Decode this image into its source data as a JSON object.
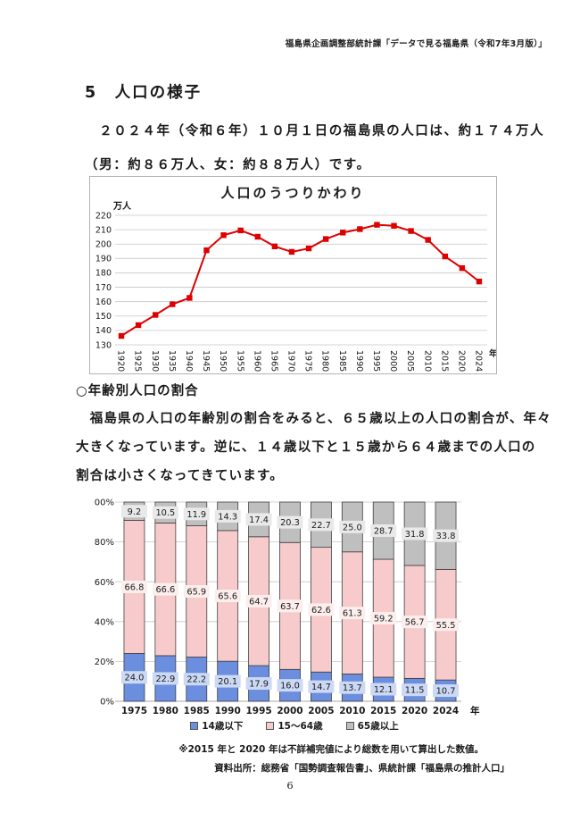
{
  "header": {
    "credit": "福島県企画調整部統計課「データで見る福島県（令和7年3月版）」"
  },
  "section": {
    "title": "5　人口の様子",
    "body_line1": "　２０２４年（令和６年）１０月１日の福島県の人口は、約１７４万人",
    "body_line2": "（男：約８６万人、女：約８８万人）です。"
  },
  "subsection": {
    "title": "○年齢別人口の割合",
    "body_line1": "　福島県の人口の年齢別の割合をみると、６５歳以上の人口の割合が、年々",
    "body_line2": "大きくなっています。逆に、１４歳以下と１５歳から６４歳までの人口の",
    "body_line3": "割合は小さくなってきています。"
  },
  "footer": {
    "note": "※2015 年と 2020 年は不詳補完値により総数を用いて算出した数値。",
    "source": "資料出所：総務省「国勢調査報告書」、県統計課「福島県の推計人口」",
    "page_number": "6"
  },
  "chart_data": [
    {
      "type": "line",
      "title": "人口のうつりかわり",
      "unit_label": "万人",
      "x_axis_suffix": "年",
      "x": [
        "1920",
        "1925",
        "1930",
        "1935",
        "1940",
        "1945",
        "1950",
        "1955",
        "1960",
        "1965",
        "1970",
        "1975",
        "1980",
        "1985",
        "1990",
        "1995",
        "2000",
        "2005",
        "2010",
        "2015",
        "2020",
        "2024"
      ],
      "values": [
        136.2,
        143.7,
        150.8,
        158.2,
        162.6,
        195.7,
        206.2,
        209.5,
        205.1,
        198.4,
        194.6,
        197.0,
        203.5,
        208.0,
        210.4,
        213.4,
        212.7,
        209.1,
        202.9,
        191.4,
        183.3,
        174.0
      ],
      "ylim": [
        130,
        220
      ],
      "ytick_step": 10,
      "grid": true,
      "legend": "none",
      "line_color": "#dd0000",
      "marker": "square"
    },
    {
      "type": "bar",
      "subtype": "stacked-percent",
      "categories": [
        "1975",
        "1980",
        "1985",
        "1990",
        "1995",
        "2000",
        "2005",
        "2010",
        "2015",
        "2020",
        "2024"
      ],
      "x_axis_suffix": "年",
      "series": [
        {
          "name": "14歳以下",
          "color": "#6b8ede",
          "label_bg": "#ccd9f5",
          "values": [
            24.0,
            22.9,
            22.2,
            20.1,
            17.9,
            16.0,
            14.7,
            13.7,
            12.1,
            11.5,
            10.7
          ]
        },
        {
          "name": "15〜64歳",
          "color": "#f7cbcb",
          "label_bg": "#fdeeee",
          "values": [
            66.8,
            66.6,
            65.9,
            65.6,
            64.7,
            63.7,
            62.6,
            61.3,
            59.2,
            56.7,
            55.5
          ]
        },
        {
          "name": "65歳以上",
          "color": "#bfbfbf",
          "label_bg": "#e9e9e9",
          "values": [
            9.2,
            10.5,
            11.9,
            14.3,
            17.4,
            20.3,
            22.7,
            25.0,
            28.7,
            31.8,
            33.8
          ]
        }
      ],
      "ylim": [
        0,
        100
      ],
      "ytick_labels": [
        "0%",
        "20%",
        "40%",
        "60%",
        "80%",
        "100%"
      ],
      "grid": true,
      "legend_position": "bottom"
    }
  ]
}
